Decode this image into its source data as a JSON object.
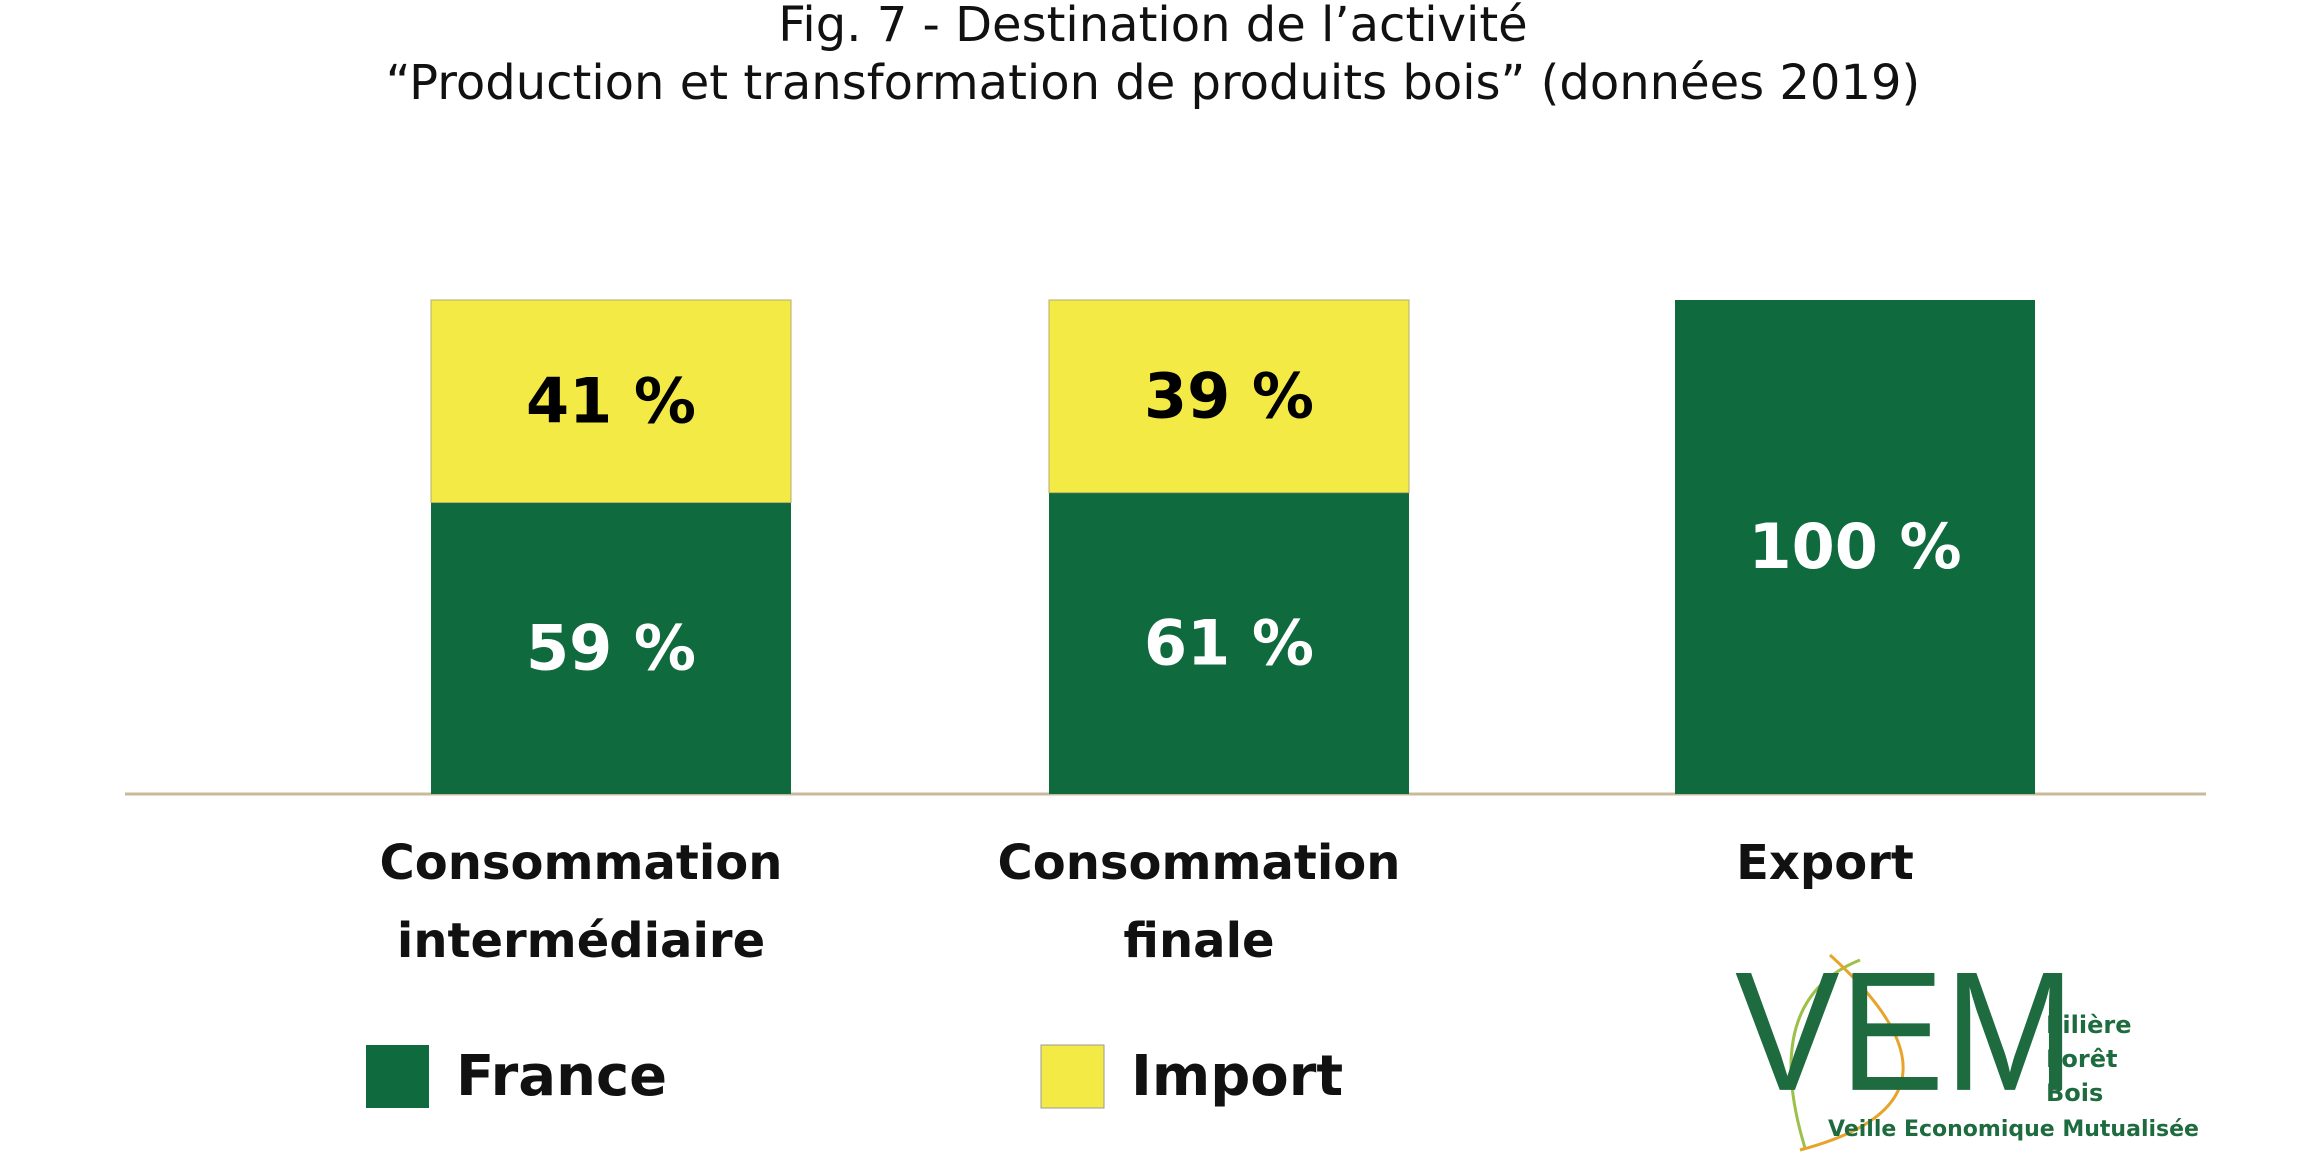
{
  "chart_data": {
    "type": "stacked_bar",
    "title": "Fig. 7 - Destination de l’activité",
    "subtitle": "“Production et transformation de produits bois” (données 2019)",
    "categories": [
      "Consommation intermédiaire",
      "Consommation finale",
      "Export"
    ],
    "series": [
      {
        "name": "France",
        "color": "#0f6a3d",
        "label_color": "#ffffff",
        "values": [
          59,
          61,
          100
        ],
        "value_labels": [
          "59 %",
          "61 %",
          "100 %"
        ]
      },
      {
        "name": "Import",
        "color": "#f3ea46",
        "label_color": "#000000",
        "values": [
          41,
          39,
          null
        ],
        "value_labels": [
          "41 %",
          "39 %",
          null
        ]
      }
    ],
    "ylim": [
      0,
      100
    ]
  },
  "logo": {
    "letters": "VEM",
    "lines": [
      "Filière",
      "Forêt",
      "Bois"
    ],
    "caption": "Veille Economique Mutualisée"
  }
}
